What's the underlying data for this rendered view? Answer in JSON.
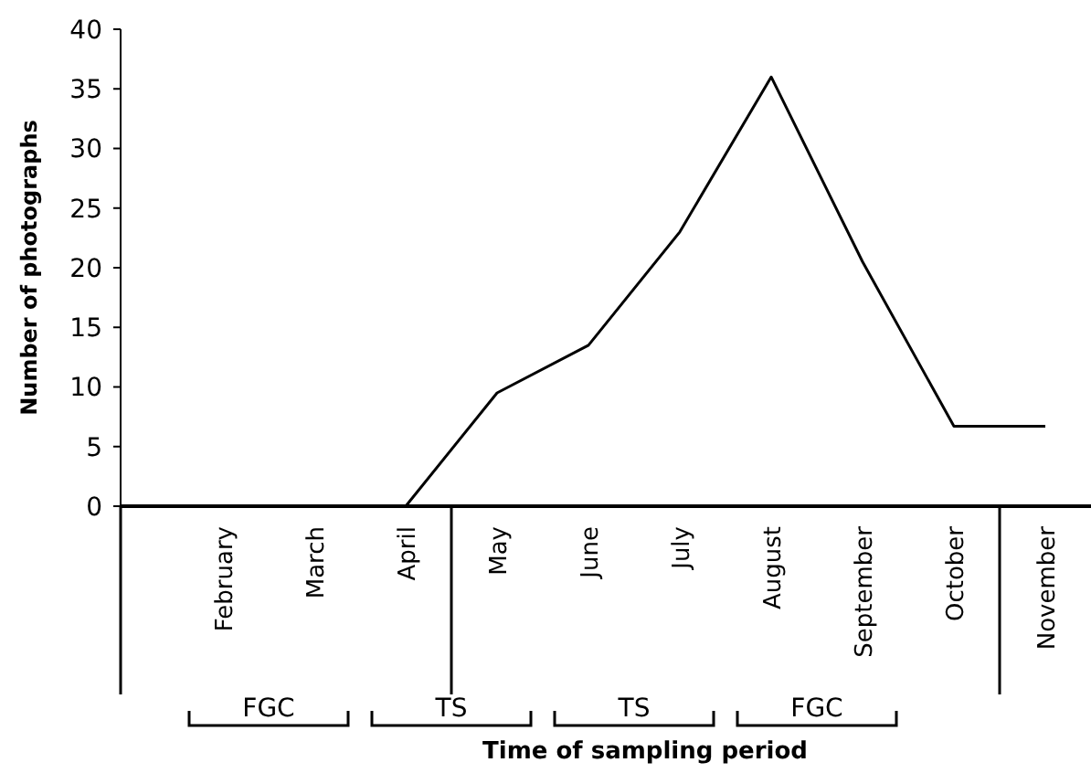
{
  "chart_data": {
    "type": "line",
    "xlabel": "Time of sampling period",
    "ylabel": "Number of photographs",
    "categories": [
      "February",
      "March",
      "April",
      "May",
      "June",
      "July",
      "August",
      "September",
      "October",
      "November"
    ],
    "series": [
      {
        "color": "#000000",
        "values": [
          null,
          null,
          0,
          9.5,
          13.5,
          23,
          36,
          20.5,
          6.7,
          6.7
        ]
      }
    ],
    "ylim": [
      0,
      40
    ],
    "yticks": [
      0,
      5,
      10,
      15,
      20,
      25,
      30,
      35,
      40
    ],
    "annotations": [
      "FGC",
      "TS",
      "TS",
      "FGC"
    ]
  }
}
